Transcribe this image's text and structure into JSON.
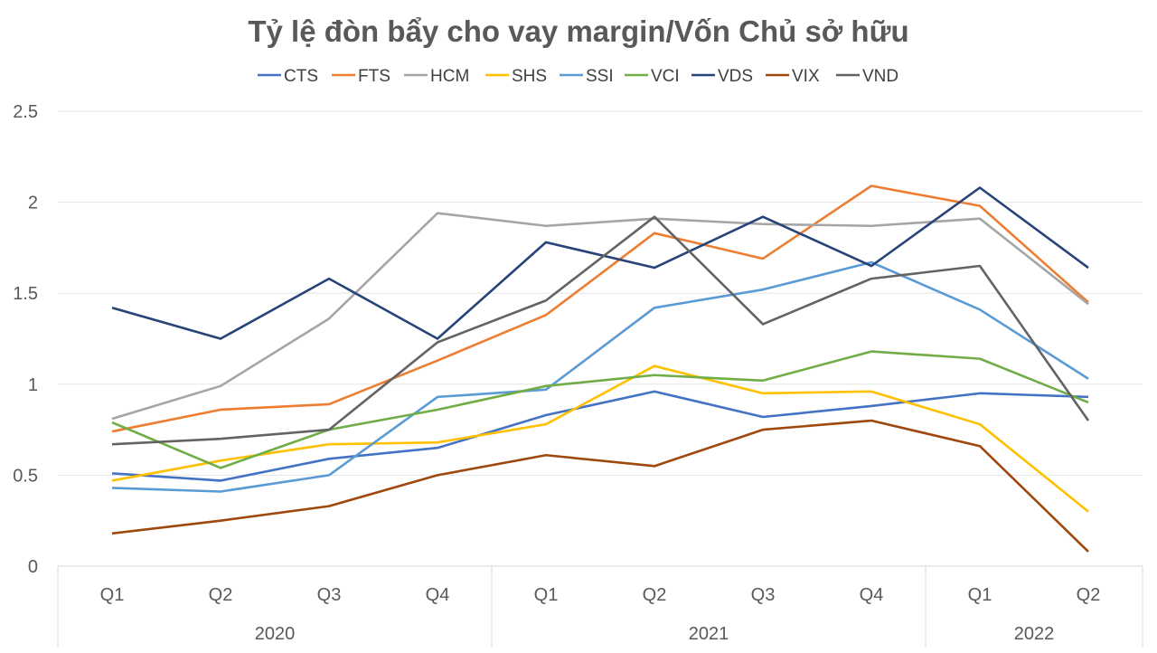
{
  "chart_data": {
    "type": "line",
    "title": "Tỷ lệ đòn bẩy cho vay margin/Vốn Chủ sở hữu",
    "xlabel": "",
    "ylabel": "",
    "ylim": [
      0,
      2.5
    ],
    "yticks": [
      "0",
      "0.5",
      "1",
      "1.5",
      "2",
      "2.5"
    ],
    "grid": true,
    "legend_position": "top",
    "categories": [
      "Q1",
      "Q2",
      "Q3",
      "Q4",
      "Q1",
      "Q2",
      "Q3",
      "Q4",
      "Q1",
      "Q2"
    ],
    "groups": [
      {
        "label": "2020",
        "count": 4
      },
      {
        "label": "2021",
        "count": 4
      },
      {
        "label": "2022",
        "count": 2
      }
    ],
    "series": [
      {
        "name": "CTS",
        "color": "#4472C4",
        "values": [
          0.51,
          0.47,
          0.59,
          0.65,
          0.83,
          0.96,
          0.82,
          0.88,
          0.95,
          0.93
        ]
      },
      {
        "name": "FTS",
        "color": "#ED7D31",
        "values": [
          0.74,
          0.86,
          0.89,
          1.13,
          1.38,
          1.83,
          1.69,
          2.09,
          1.98,
          1.45
        ]
      },
      {
        "name": "HCM",
        "color": "#A5A5A5",
        "values": [
          0.81,
          0.99,
          1.36,
          1.94,
          1.87,
          1.91,
          1.88,
          1.87,
          1.91,
          1.44
        ]
      },
      {
        "name": "SHS",
        "color": "#FFC000",
        "values": [
          0.47,
          0.58,
          0.67,
          0.68,
          0.78,
          1.1,
          0.95,
          0.96,
          0.78,
          0.3
        ]
      },
      {
        "name": "SSI",
        "color": "#5B9BD5",
        "values": [
          0.43,
          0.41,
          0.5,
          0.93,
          0.97,
          1.42,
          1.52,
          1.67,
          1.41,
          1.03
        ]
      },
      {
        "name": "VCI",
        "color": "#70AD47",
        "values": [
          0.79,
          0.54,
          0.75,
          0.86,
          0.99,
          1.05,
          1.02,
          1.18,
          1.14,
          0.9
        ]
      },
      {
        "name": "VDS",
        "color": "#264478",
        "values": [
          1.42,
          1.25,
          1.58,
          1.25,
          1.78,
          1.64,
          1.92,
          1.65,
          2.08,
          1.64
        ]
      },
      {
        "name": "VIX",
        "color": "#9E480E",
        "values": [
          0.18,
          0.25,
          0.33,
          0.5,
          0.61,
          0.55,
          0.75,
          0.8,
          0.66,
          0.08
        ]
      },
      {
        "name": "VND",
        "color": "#636363",
        "values": [
          0.67,
          0.7,
          0.75,
          1.23,
          1.46,
          1.92,
          1.33,
          1.58,
          1.65,
          0.8
        ]
      }
    ]
  }
}
